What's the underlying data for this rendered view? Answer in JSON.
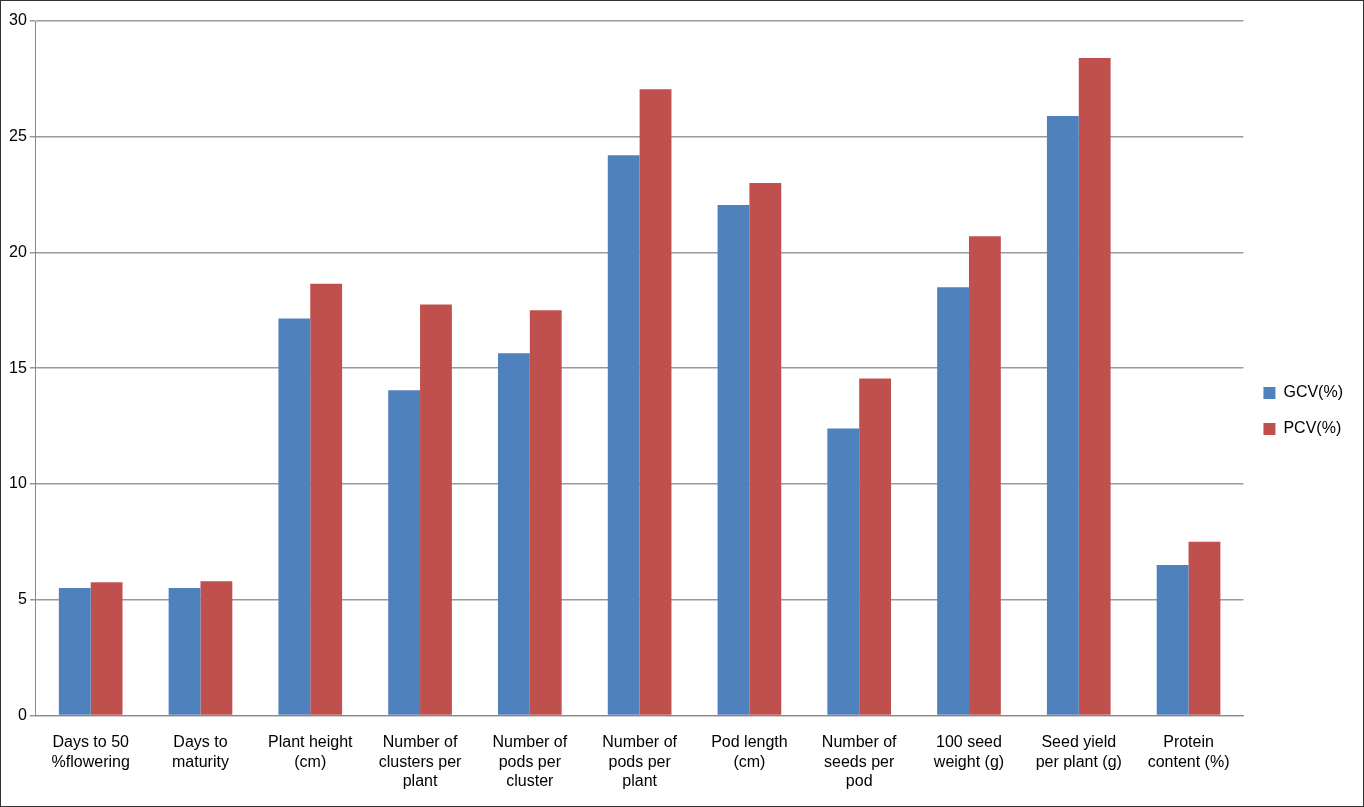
{
  "chart_data": {
    "type": "bar",
    "categories": [
      "Days to 50 %flowering",
      "Days to maturity",
      "Plant height (cm)",
      "Number of clusters per plant",
      "Number of pods per cluster",
      "Number of pods per plant",
      "Pod length (cm)",
      "Number of seeds per pod",
      "100 seed weight (g)",
      "Seed yield per plant (g)",
      "Protein content (%)"
    ],
    "series": [
      {
        "name": "GCV(%)",
        "color": "#4f81bd",
        "values": [
          5.5,
          5.5,
          17.15,
          14.05,
          15.65,
          24.2,
          22.05,
          12.4,
          18.5,
          25.9,
          6.5
        ]
      },
      {
        "name": "PCV(%)",
        "color": "#c0504d",
        "values": [
          5.75,
          5.8,
          18.65,
          17.75,
          17.5,
          27.05,
          23.0,
          14.55,
          20.7,
          28.4,
          7.5
        ]
      }
    ],
    "ylim": [
      0,
      30
    ],
    "yticks": [
      0,
      5,
      10,
      15,
      20,
      25,
      30
    ],
    "grid": "y",
    "legend": "right"
  }
}
